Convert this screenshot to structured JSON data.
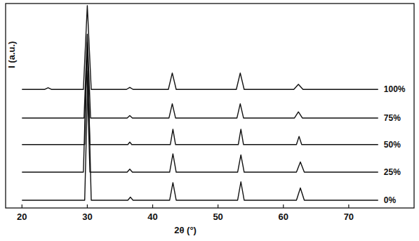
{
  "chart_data": {
    "type": "line",
    "x_label": "2θ (°)",
    "y_label": "I (a.u.)",
    "xlim": [
      17.5,
      80
    ],
    "xticks": [
      20,
      30,
      40,
      50,
      60,
      70
    ],
    "ylim": [
      0,
      100
    ],
    "tick_labels": "x",
    "grid": false,
    "color": "#111111",
    "series": [
      {
        "name": "0%",
        "color": "#111111",
        "x": [
          20,
          29.6,
          30.1,
          30.6,
          36.2,
          36.6,
          37.0,
          42.6,
          43.1,
          43.6,
          53.0,
          53.5,
          54.0,
          62.0,
          62.6,
          63.2,
          74.5
        ],
        "values": [
          3.8,
          3.8,
          67,
          3.8,
          3.8,
          5.3,
          3.8,
          3.8,
          12.4,
          3.8,
          3.8,
          12.8,
          3.8,
          3.8,
          9.8,
          3.8,
          3.8
        ]
      },
      {
        "name": "25%",
        "color": "#111111",
        "x": [
          20,
          29.4,
          29.9,
          30.4,
          36.1,
          36.5,
          36.9,
          42.6,
          43.1,
          43.6,
          53.0,
          53.5,
          54.0,
          62.0,
          62.6,
          63.2,
          74.5
        ],
        "values": [
          17.5,
          17.5,
          72,
          17.5,
          17.5,
          19,
          17.5,
          17.5,
          26.5,
          17.5,
          17.5,
          26,
          17.5,
          17.5,
          22.5,
          17.5,
          17.5
        ]
      },
      {
        "name": "50%",
        "color": "#111111",
        "x": [
          20,
          29.6,
          30.0,
          30.4,
          36.2,
          36.5,
          36.8,
          42.7,
          43.1,
          43.5,
          53.1,
          53.5,
          53.9,
          62.0,
          62.4,
          62.8,
          74.5
        ],
        "values": [
          31,
          31,
          81,
          31,
          31,
          32.2,
          31,
          31,
          38.5,
          31,
          31,
          38.5,
          31,
          31,
          35,
          31,
          31
        ]
      },
      {
        "name": "75%",
        "color": "#111111",
        "x": [
          20,
          29.5,
          30.0,
          30.5,
          36.1,
          36.5,
          36.9,
          42.5,
          43.0,
          43.5,
          52.9,
          53.4,
          53.9,
          61.7,
          62.3,
          62.9,
          74.5
        ],
        "values": [
          44,
          44,
          85,
          44,
          44,
          45.2,
          44,
          44,
          51,
          44,
          44,
          51,
          44,
          44,
          47,
          44,
          44
        ]
      },
      {
        "name": "100%",
        "color": "#111111",
        "x": [
          20,
          23.5,
          24.0,
          24.5,
          29.4,
          30.0,
          30.6,
          36.0,
          36.5,
          37.0,
          42.4,
          43.0,
          43.6,
          52.8,
          53.4,
          54.0,
          61.6,
          62.3,
          63.0,
          74.5
        ],
        "values": [
          58,
          58,
          58.8,
          58,
          58,
          99,
          58,
          58,
          59,
          58,
          58,
          66,
          58,
          58,
          66,
          58,
          58,
          60.5,
          58,
          58
        ]
      }
    ]
  }
}
